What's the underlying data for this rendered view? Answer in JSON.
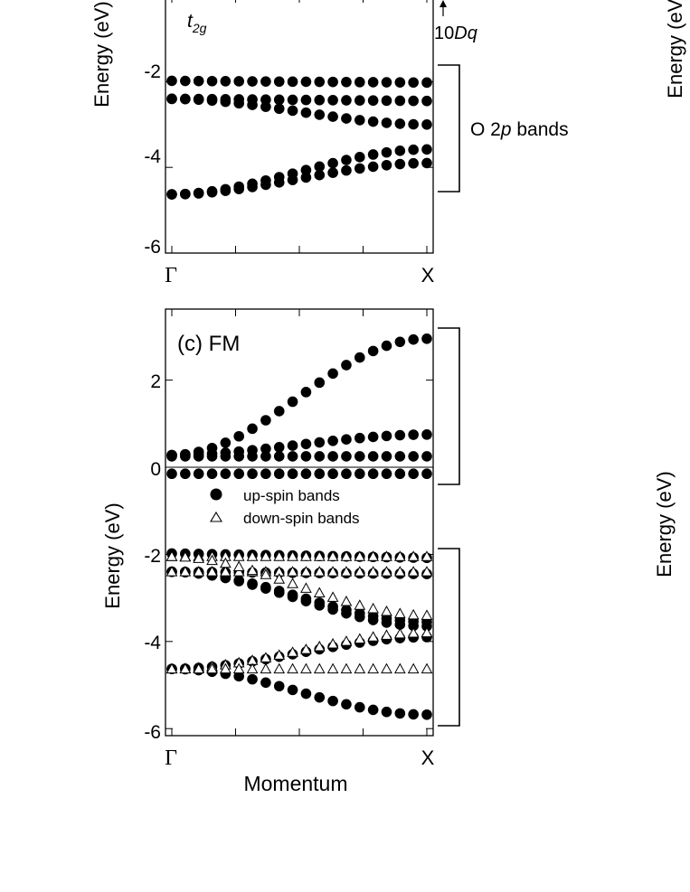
{
  "figure": {
    "top_panel": {
      "ylabel": "Energy (eV)",
      "t2g_label": {
        "main": "t",
        "sub": "2g"
      },
      "dq_label": {
        "num": "10",
        "var": "Dq"
      },
      "band_label": {
        "pre": "O 2",
        "var": "p",
        "post": " bands"
      },
      "y_ticks": [
        "-2",
        "-4",
        "-6"
      ],
      "x_ticks": [
        "Γ",
        "X"
      ]
    },
    "bottom_panel": {
      "panel_label": "(c) FM",
      "ylabel": "Energy (eV)",
      "xlabel": "Momentum",
      "y_ticks": [
        "2",
        "0",
        "-2",
        "-4",
        "-6"
      ],
      "x_ticks": [
        "Γ",
        "X"
      ],
      "legend": {
        "up": "up-spin bands",
        "down": "down-spin bands"
      }
    },
    "right_column": {
      "ylabel_top": "Energy (eV)",
      "ylabel_bottom": "Energy (eV)"
    }
  },
  "chart_data": [
    {
      "type": "scatter",
      "title": "",
      "xlabel": "",
      "ylabel": "Energy (eV)",
      "x_categories": [
        "Γ",
        "X"
      ],
      "x_range": [
        0,
        1
      ],
      "ylim": [
        -6,
        -1.2
      ],
      "series": [
        {
          "marker": "filled-circle",
          "start": -1.98,
          "end": -2.02,
          "shape": "linear"
        },
        {
          "marker": "filled-circle",
          "start": -2.4,
          "end": -2.45,
          "shape": "linear"
        },
        {
          "marker": "filled-circle",
          "start": -2.4,
          "end": -3.0,
          "shape": "smooth"
        },
        {
          "marker": "filled-circle",
          "start": -4.63,
          "end": -3.58,
          "shape": "smooth"
        },
        {
          "marker": "filled-circle",
          "start": -4.63,
          "end": -3.9,
          "shape": "smooth"
        }
      ]
    },
    {
      "type": "scatter",
      "title": "(c) FM",
      "xlabel": "Momentum",
      "ylabel": "Energy (eV)",
      "x_categories": [
        "Γ",
        "X"
      ],
      "x_range": [
        0,
        1
      ],
      "ylim": [
        -6,
        3.7
      ],
      "series": [
        {
          "name": "up-spin bands",
          "marker": "filled-circle",
          "start": 0.28,
          "end": 2.95,
          "shape": "cosine"
        },
        {
          "name": "up-spin bands",
          "marker": "filled-circle",
          "start": 0.28,
          "end": 0.75,
          "shape": "smooth"
        },
        {
          "name": "up-spin bands",
          "marker": "filled-circle",
          "start": 0.25,
          "end": 0.25,
          "shape": "linear"
        },
        {
          "name": "up-spin bands",
          "marker": "filled-circle",
          "start": -0.15,
          "end": -0.15,
          "shape": "linear"
        },
        {
          "name": "up-spin bands",
          "marker": "filled-circle",
          "start": -1.98,
          "end": -2.08,
          "shape": "linear"
        },
        {
          "name": "up-spin bands",
          "marker": "filled-circle",
          "start": -2.4,
          "end": -2.45,
          "shape": "linear"
        },
        {
          "name": "up-spin bands",
          "marker": "filled-circle",
          "start": -2.4,
          "end": -3.55,
          "shape": "smooth"
        },
        {
          "name": "up-spin bands",
          "marker": "filled-circle",
          "start": -2.4,
          "end": -3.65,
          "shape": "smooth"
        },
        {
          "name": "up-spin bands",
          "marker": "filled-circle",
          "start": -4.63,
          "end": -3.9,
          "shape": "smooth"
        },
        {
          "name": "up-spin bands",
          "marker": "filled-circle",
          "start": -4.63,
          "end": -5.68,
          "shape": "cosine"
        },
        {
          "name": "down-spin bands",
          "marker": "open-triangle",
          "start": -2.05,
          "end": -2.05,
          "shape": "linear"
        },
        {
          "name": "down-spin bands",
          "marker": "open-triangle",
          "start": -2.4,
          "end": -2.4,
          "shape": "linear"
        },
        {
          "name": "down-spin bands",
          "marker": "open-triangle",
          "start": -2.05,
          "end": -3.4,
          "shape": "smooth"
        },
        {
          "name": "down-spin bands",
          "marker": "open-triangle",
          "start": -4.63,
          "end": -3.8,
          "shape": "smooth"
        },
        {
          "name": "down-spin bands",
          "marker": "open-triangle",
          "start": -4.63,
          "end": -4.63,
          "shape": "linear"
        }
      ]
    }
  ]
}
